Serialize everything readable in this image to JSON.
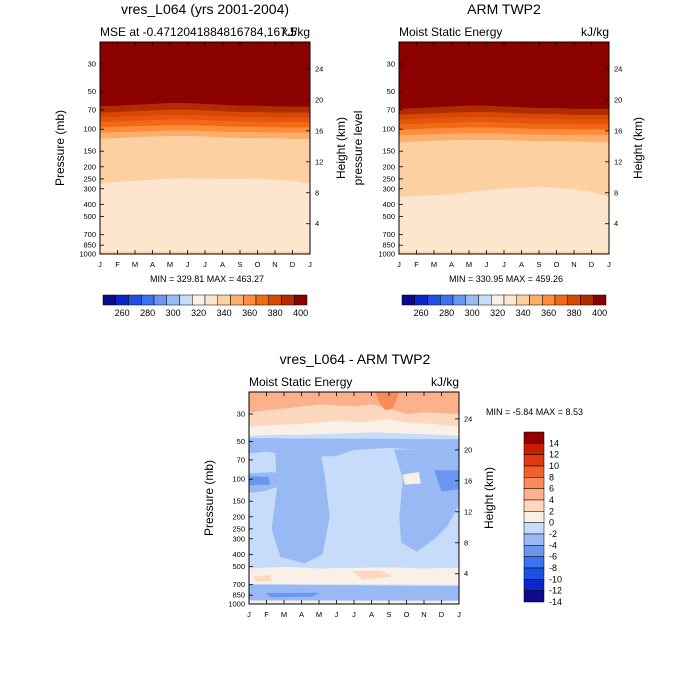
{
  "colors": {
    "background": "#ffffff",
    "frame": "#000000",
    "warm_scale": [
      "#fff5eb",
      "#fee6ce",
      "#fdd0a2",
      "#fdae6b",
      "#fd8d3c",
      "#f16913",
      "#e6550d",
      "#d94801",
      "#b22c00",
      "#8b0000"
    ],
    "anomaly_colorbar": [
      "#0a0a8c",
      "#0a28c8",
      "#1e50e6",
      "#3c73f0",
      "#6a96f0",
      "#99b9f5",
      "#c7dbfa",
      "#f9f1e8",
      "#fdd7be",
      "#fcb08b",
      "#fa8a5a",
      "#f0602d",
      "#e0380f",
      "#c81e00",
      "#940000"
    ],
    "absolute_colorbar": [
      "#0a0a8c",
      "#0a28c8",
      "#1e50e6",
      "#3c73f0",
      "#6a96f0",
      "#99b9f5",
      "#c7dbfa",
      "#f9f1e8",
      "#fee6ce",
      "#fdd0a2",
      "#fdae6b",
      "#fd8d3c",
      "#f16913",
      "#d94801",
      "#b22c00",
      "#8b0000"
    ]
  },
  "chart_data": [
    {
      "type": "heatmap",
      "id": "model",
      "title": "vres_L064 (yrs 2001-2004)",
      "left_label": "MSE at -0.4712041884816784,167.5",
      "right_label": "kJ/kg",
      "xlabel": "",
      "ylabel": "Pressure (mb)",
      "y2label": "Height (km)",
      "x_ticks": [
        "J",
        "F",
        "M",
        "A",
        "M",
        "J",
        "J",
        "A",
        "S",
        "O",
        "N",
        "D",
        "J"
      ],
      "y_ticks": [
        30,
        50,
        70,
        100,
        150,
        200,
        250,
        300,
        400,
        500,
        700,
        850,
        1000
      ],
      "height_ticks": [
        24,
        20,
        16,
        12,
        8,
        4
      ],
      "ylim_mb": [
        20,
        1000
      ],
      "stats": "MIN = 329.81  MAX = 463.27",
      "levels": [
        330,
        340,
        350,
        360,
        370,
        380,
        390,
        400,
        410
      ],
      "boundaries_mb": {
        "x_month": [
          0,
          1,
          2,
          3,
          4,
          5,
          6,
          7,
          8,
          9,
          10,
          11,
          12
        ],
        "b340": [
          275,
          265,
          260,
          255,
          250,
          248,
          250,
          252,
          252,
          250,
          255,
          262,
          275
        ],
        "b350": [
          120,
          118,
          116,
          115,
          114,
          114,
          115,
          117,
          118,
          118,
          118,
          120,
          120
        ],
        "b360": [
          107,
          106,
          105,
          104,
          103,
          103,
          104,
          105,
          106,
          106,
          107,
          107,
          107
        ],
        "b370": [
          97,
          96,
          95,
          94,
          93,
          93,
          94,
          95,
          96,
          96,
          97,
          97,
          97
        ],
        "b380": [
          88,
          87,
          86,
          85,
          84,
          84,
          85,
          86,
          87,
          87,
          88,
          88,
          88
        ],
        "b390": [
          81,
          80,
          79,
          78,
          77,
          77,
          78,
          79,
          80,
          80,
          81,
          81,
          81
        ],
        "b400": [
          74,
          73,
          72,
          71,
          70,
          70,
          71,
          72,
          73,
          73,
          74,
          74,
          74
        ],
        "b410": [
          66,
          65,
          64,
          63,
          62,
          62,
          63,
          64,
          65,
          65,
          66,
          66,
          66
        ],
        "surface_low": [
          960,
          960,
          958,
          958,
          958,
          958,
          960,
          960,
          958,
          958,
          960,
          960,
          960
        ]
      }
    },
    {
      "type": "heatmap",
      "id": "obs",
      "title": "ARM TWP2",
      "left_label": "Moist Static Energy",
      "right_label": "kJ/kg",
      "xlabel": "",
      "ylabel": "pressure level",
      "y2label": "Height (km)",
      "x_ticks": [
        "J",
        "F",
        "M",
        "A",
        "M",
        "J",
        "J",
        "A",
        "S",
        "O",
        "N",
        "D",
        "J"
      ],
      "y_ticks": [
        30,
        50,
        70,
        100,
        150,
        200,
        250,
        300,
        400,
        500,
        700,
        850,
        1000
      ],
      "height_ticks": [
        24,
        20,
        16,
        12,
        8,
        4
      ],
      "ylim_mb": [
        20,
        1000
      ],
      "stats": "MIN = 330.95  MAX = 459.26",
      "levels": [
        330,
        340,
        350,
        360,
        370,
        380,
        390,
        400,
        410
      ],
      "boundaries_mb": {
        "x_month": [
          0,
          1,
          2,
          3,
          4,
          5,
          6,
          7,
          8,
          9,
          10,
          11,
          12
        ],
        "b340": [
          350,
          345,
          340,
          335,
          320,
          310,
          300,
          295,
          290,
          295,
          305,
          320,
          350
        ],
        "b350": [
          128,
          126,
          124,
          123,
          122,
          122,
          123,
          124,
          125,
          125,
          126,
          127,
          128
        ],
        "b360": [
          112,
          111,
          110,
          109,
          108,
          108,
          109,
          110,
          111,
          111,
          112,
          112,
          112
        ],
        "b370": [
          101,
          100,
          99,
          98,
          97,
          97,
          98,
          99,
          100,
          100,
          101,
          101,
          101
        ],
        "b380": [
          92,
          91,
          90,
          89,
          88,
          88,
          89,
          90,
          91,
          91,
          92,
          92,
          92
        ],
        "b390": [
          84,
          83,
          82,
          81,
          80,
          80,
          81,
          82,
          83,
          83,
          84,
          84,
          84
        ],
        "b400": [
          77,
          76,
          75,
          74,
          73,
          73,
          74,
          75,
          76,
          76,
          77,
          77,
          77
        ],
        "b410": [
          69,
          68,
          67,
          66,
          65,
          65,
          66,
          67,
          68,
          68,
          69,
          69,
          69
        ],
        "surface_low": [
          965,
          962,
          960,
          960,
          960,
          960,
          962,
          962,
          960,
          960,
          962,
          965,
          965
        ]
      }
    },
    {
      "type": "heatmap",
      "id": "diff",
      "title": "vres_L064 - ARM TWP2",
      "left_label": "Moist Static Energy",
      "right_label": "kJ/kg",
      "xlabel": "",
      "ylabel": "Pressure (mb)",
      "y2label": "Height (km)",
      "x_ticks": [
        "J",
        "F",
        "M",
        "A",
        "M",
        "J",
        "J",
        "A",
        "S",
        "O",
        "N",
        "D",
        "J"
      ],
      "y_ticks": [
        30,
        50,
        70,
        100,
        150,
        200,
        250,
        300,
        400,
        500,
        700,
        850,
        1000
      ],
      "height_ticks": [
        24,
        20,
        16,
        12,
        8,
        4
      ],
      "ylim_mb": [
        20,
        1000
      ],
      "stats": "MIN =  -5.84 MAX =   8.53",
      "colorbar_labels": [
        "14",
        "12",
        "10",
        "8",
        "6",
        "4",
        "2",
        "0",
        "-2",
        "-4",
        "-6",
        "-8",
        "-10",
        "-12",
        "-14"
      ]
    }
  ],
  "colorbar_abs_labels": [
    "260",
    "280",
    "300",
    "320",
    "340",
    "360",
    "380",
    "400"
  ]
}
